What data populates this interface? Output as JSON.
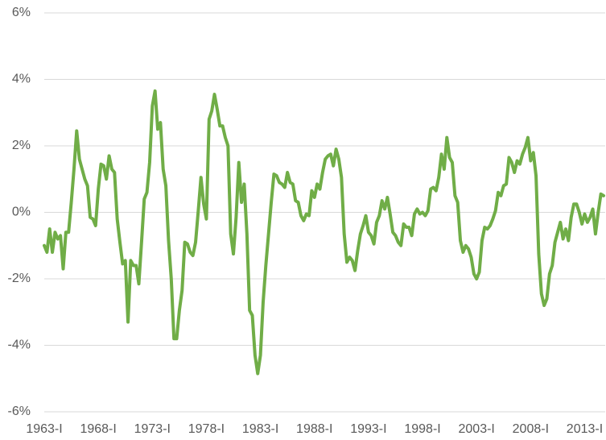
{
  "chart_data": {
    "type": "line",
    "categories": [
      "1963-I",
      null,
      null,
      null,
      null,
      null,
      null,
      null,
      null,
      null,
      null,
      null,
      null,
      null,
      null,
      null,
      null,
      null,
      null,
      null,
      "1968-I",
      null,
      null,
      null,
      null,
      null,
      null,
      null,
      null,
      null,
      null,
      null,
      null,
      null,
      null,
      null,
      null,
      null,
      null,
      null,
      "1973-I",
      null,
      null,
      null,
      null,
      null,
      null,
      null,
      null,
      null,
      null,
      null,
      null,
      null,
      null,
      null,
      null,
      null,
      null,
      null,
      "1978-I",
      null,
      null,
      null,
      null,
      null,
      null,
      null,
      null,
      null,
      null,
      null,
      null,
      null,
      null,
      null,
      null,
      null,
      null,
      null,
      "1983-I",
      null,
      null,
      null,
      null,
      null,
      null,
      null,
      null,
      null,
      null,
      null,
      null,
      null,
      null,
      null,
      null,
      null,
      null,
      null,
      "1988-I",
      null,
      null,
      null,
      null,
      null,
      null,
      null,
      null,
      null,
      null,
      null,
      null,
      null,
      null,
      null,
      null,
      null,
      null,
      null,
      "1993-I",
      null,
      null,
      null,
      null,
      null,
      null,
      null,
      null,
      null,
      null,
      null,
      null,
      null,
      null,
      null,
      null,
      null,
      null,
      null,
      "1998-I",
      null,
      null,
      null,
      null,
      null,
      null,
      null,
      null,
      null,
      null,
      null,
      null,
      null,
      null,
      null,
      null,
      null,
      null,
      null,
      "2003-I",
      null,
      null,
      null,
      null,
      null,
      null,
      null,
      null,
      null,
      null,
      null,
      null,
      null,
      null,
      null,
      null,
      null,
      null,
      null,
      "2008-I",
      null,
      null,
      null,
      null,
      null,
      null,
      null,
      null,
      null,
      null,
      null,
      null,
      null,
      null,
      null,
      null,
      null,
      null,
      null,
      "2013-I",
      null,
      null,
      null,
      null,
      null,
      null,
      null
    ],
    "values": [
      -1.0,
      -1.2,
      -0.5,
      -1.2,
      -0.6,
      -0.8,
      -0.7,
      -1.7,
      -0.6,
      -0.6,
      0.3,
      1.3,
      2.45,
      1.6,
      1.3,
      1.0,
      0.8,
      -0.15,
      -0.2,
      -0.4,
      0.7,
      1.45,
      1.4,
      1.0,
      1.7,
      1.3,
      1.2,
      -0.2,
      -0.9,
      -1.55,
      -1.45,
      -3.3,
      -1.45,
      -1.6,
      -1.6,
      -2.15,
      -0.9,
      0.4,
      0.6,
      1.5,
      3.2,
      3.65,
      2.5,
      2.7,
      1.3,
      0.8,
      -0.85,
      -2.0,
      -3.8,
      -3.8,
      -2.95,
      -2.35,
      -0.9,
      -0.95,
      -1.2,
      -1.3,
      -0.9,
      0.05,
      1.05,
      0.25,
      -0.2,
      2.8,
      3.05,
      3.55,
      3.1,
      2.6,
      2.6,
      2.25,
      2.0,
      -0.65,
      -1.25,
      -0.15,
      1.5,
      0.3,
      0.85,
      -0.65,
      -2.95,
      -3.1,
      -4.3,
      -4.85,
      -4.3,
      -2.7,
      -1.6,
      -0.65,
      0.3,
      1.15,
      1.1,
      0.9,
      0.85,
      0.75,
      1.2,
      0.9,
      0.85,
      0.35,
      0.3,
      -0.1,
      -0.25,
      -0.05,
      -0.1,
      0.65,
      0.45,
      0.85,
      0.7,
      1.2,
      1.6,
      1.7,
      1.75,
      1.4,
      1.9,
      1.6,
      1.05,
      -0.65,
      -1.5,
      -1.35,
      -1.45,
      -1.75,
      -1.15,
      -0.65,
      -0.4,
      -0.1,
      -0.6,
      -0.7,
      -0.95,
      -0.3,
      -0.1,
      0.35,
      0.1,
      0.45,
      -0.05,
      -0.6,
      -0.7,
      -0.9,
      -1.0,
      -0.35,
      -0.45,
      -0.45,
      -0.7,
      -0.05,
      0.1,
      -0.05,
      0,
      -0.1,
      0.05,
      0.7,
      0.75,
      0.65,
      1.05,
      1.75,
      1.3,
      2.25,
      1.65,
      1.5,
      0.5,
      0.3,
      -0.85,
      -1.2,
      -1.0,
      -1.1,
      -1.35,
      -1.85,
      -2.0,
      -1.8,
      -0.85,
      -0.45,
      -0.5,
      -0.4,
      -0.2,
      0.05,
      0.6,
      0.5,
      0.8,
      0.85,
      1.65,
      1.5,
      1.2,
      1.55,
      1.45,
      1.75,
      1.95,
      2.25,
      1.55,
      1.8,
      1.1,
      -1.25,
      -2.45,
      -2.8,
      -2.6,
      -1.85,
      -1.6,
      -0.9,
      -0.6,
      -0.3,
      -0.8,
      -0.5,
      -0.85,
      -0.15,
      0.25,
      0.25,
      0,
      -0.35,
      -0.05,
      -0.3,
      -0.15,
      0.1,
      -0.65,
      0,
      0.55,
      0.5
    ],
    "color": "#70ad47",
    "ylim": [
      -6,
      6
    ],
    "yticks": [
      {
        "value": -6,
        "label": "-6%"
      },
      {
        "value": -4,
        "label": "-4%"
      },
      {
        "value": -2,
        "label": "-2%"
      },
      {
        "value": 0,
        "label": "0%"
      },
      {
        "value": 2,
        "label": "2%"
      },
      {
        "value": 4,
        "label": "4%"
      },
      {
        "value": 6,
        "label": "6%"
      }
    ],
    "grid": true
  }
}
